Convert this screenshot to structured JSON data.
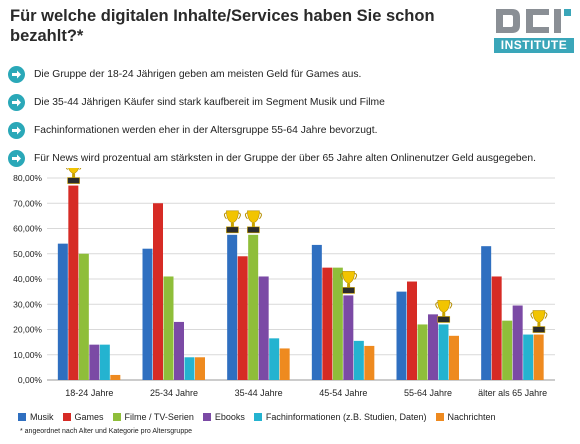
{
  "header": {
    "title": "Für welche digitalen Inhalte/Services haben Sie schon bezahlt?*",
    "logo_text": "INSTITUTE",
    "logo_mark": "DCI"
  },
  "bullets": [
    {
      "text": "Die Gruppe der 18-24 Jährigen geben am meisten Geld für Games aus.",
      "icon": "arrow-right-icon"
    },
    {
      "text": "Die 35-44 Jährigen Käufer sind stark kaufbereit im Segment Musik und Filme",
      "icon": "arrow-right-icon"
    },
    {
      "text": "Fachinformationen werden eher in der Altersgruppe 55-64 Jahre bevorzugt.",
      "icon": "arrow-right-icon"
    },
    {
      "text": "Für News wird prozentual am stärksten in der Gruppe der über 65 Jahre alten Onlinenutzer Geld ausgegeben.",
      "icon": "arrow-right-icon"
    }
  ],
  "footnote": "* angeordnet nach Alter und Kategorie pro Altersgruppe",
  "colors": {
    "Musik": "#2f6fc0",
    "Games": "#d62b25",
    "Filme / TV-Serien": "#8fbe3a",
    "Ebooks": "#7b4aa5",
    "Fachinformationen (z.B. Studien, Daten)": "#24b3d0",
    "Nachrichten": "#ee8a1f",
    "accent": "#2aa8b8"
  },
  "chart_data": {
    "type": "bar",
    "categories": [
      "18-24 Jahre",
      "25-34 Jahre",
      "35-44 Jahre",
      "45-54 Jahre",
      "55-64 Jahre",
      "älter als 65 Jahre"
    ],
    "series": [
      {
        "name": "Musik",
        "values": [
          54,
          52,
          57.5,
          53.5,
          35,
          53
        ]
      },
      {
        "name": "Games",
        "values": [
          77,
          70,
          49,
          44.5,
          39,
          41
        ]
      },
      {
        "name": "Filme / TV-Serien",
        "values": [
          50,
          41,
          57.5,
          44.5,
          22,
          23.5
        ]
      },
      {
        "name": "Ebooks",
        "values": [
          14,
          23,
          41,
          33.5,
          26,
          29.5
        ]
      },
      {
        "name": "Fachinformationen (z.B. Studien, Daten)",
        "values": [
          14,
          9,
          16.5,
          15.5,
          22,
          18
        ]
      },
      {
        "name": "Nachrichten",
        "values": [
          2,
          9,
          12.5,
          13.5,
          17.5,
          18
        ]
      }
    ],
    "yticks": [
      "0,00%",
      "10,00%",
      "20,00%",
      "30,00%",
      "40,00%",
      "50,00%",
      "60,00%",
      "70,00%",
      "80,00%"
    ],
    "ylim": [
      0,
      80
    ],
    "grid": true,
    "legend": "bottom",
    "trophies": [
      {
        "category": 0,
        "series": 1
      },
      {
        "category": 2,
        "series": 0
      },
      {
        "category": 2,
        "series": 2
      },
      {
        "category": 3,
        "series": 3
      },
      {
        "category": 4,
        "series": 4
      },
      {
        "category": 5,
        "series": 5
      }
    ]
  }
}
